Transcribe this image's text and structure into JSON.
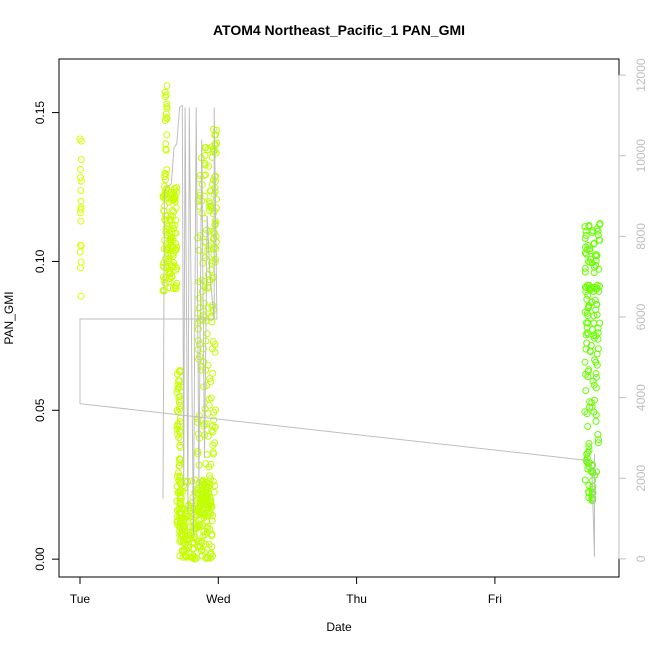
{
  "chart_data": {
    "type": "scatter",
    "title": "ATOM4 Northeast_Pacific_1 PAN_GMI",
    "xlabel": "Date",
    "ylabel": "PAN_GMI",
    "x_ticks": [
      "Tue",
      "Wed",
      "Thu",
      "Fri"
    ],
    "x_range_days": [
      0,
      3.9
    ],
    "ylim": [
      -0.006,
      0.168
    ],
    "y_ticks": [
      "0.00",
      "0.05",
      "0.10",
      "0.15"
    ],
    "y2_ticks": [
      "0",
      "2000",
      "4000",
      "6000",
      "8000",
      "10000",
      "12000"
    ],
    "y2lim": [
      -450,
      12400
    ],
    "grid": false,
    "series": [
      {
        "kind": "points",
        "color_start": "#ddff00",
        "color_end": "#66ff00",
        "segments": [
          {
            "x_days": [
              0.0,
              0.01
            ],
            "y_range": [
              0.085,
              0.146
            ]
          },
          {
            "x_days": [
              0.6,
              0.71
            ],
            "y_range": [
              0.09,
              0.16
            ]
          },
          {
            "x_days": [
              0.7,
              0.99
            ],
            "y_range": [
              0.0,
              0.14
            ]
          },
          {
            "x_days": [
              3.65,
              3.76
            ],
            "y_range": [
              0.017,
              0.113
            ]
          }
        ]
      },
      {
        "kind": "line",
        "axis": "right",
        "color": "#bebebe",
        "points": [
          [
            0.0,
            5950
          ],
          [
            0.0,
            3850
          ],
          [
            3.65,
            2450
          ],
          [
            3.7,
            2350
          ],
          [
            3.72,
            50
          ],
          [
            3.72,
            2600
          ]
        ]
      }
    ]
  }
}
